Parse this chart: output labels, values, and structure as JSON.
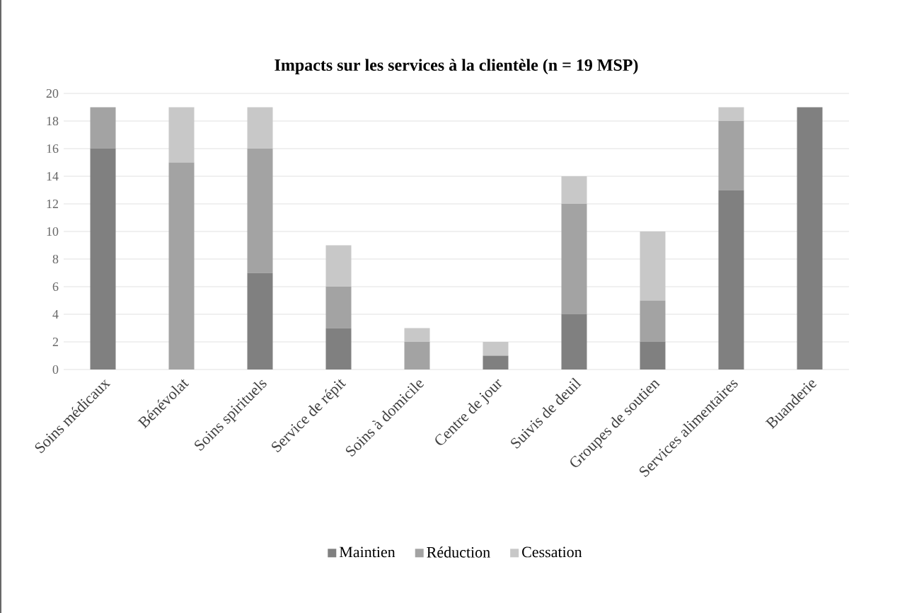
{
  "chart_data": {
    "type": "bar",
    "title": "**Impacts sur les services à la clientèle (n = 19 MSP)**",
    "categories": [
      "Soins médicaux",
      "Bénévolat",
      "Soins spirituels",
      "Service de répit",
      "Soins à domicile",
      "Centre de jour",
      "Suivis de deuil",
      "Groupes de soutien",
      "Services alimentaires",
      "Buanderie"
    ],
    "stacked": true,
    "series": [
      {
        "name": "Maintien",
        "color": "#808080",
        "values": [
          16,
          0,
          7,
          3,
          0,
          1,
          4,
          2,
          13,
          19
        ]
      },
      {
        "name": "Réduction",
        "color": "#a3a3a3",
        "values": [
          3,
          15,
          9,
          3,
          2,
          0,
          8,
          3,
          5,
          0
        ]
      },
      {
        "name": "Cessation",
        "color": "#c8c8c8",
        "values": [
          0,
          4,
          3,
          3,
          1,
          1,
          2,
          5,
          1,
          0
        ]
      }
    ],
    "ylim": [
      0,
      20
    ],
    "yticks": [
      0,
      2,
      4,
      6,
      8,
      10,
      12,
      14,
      16,
      18,
      20
    ],
    "grid": "y",
    "legend": "bottom"
  }
}
